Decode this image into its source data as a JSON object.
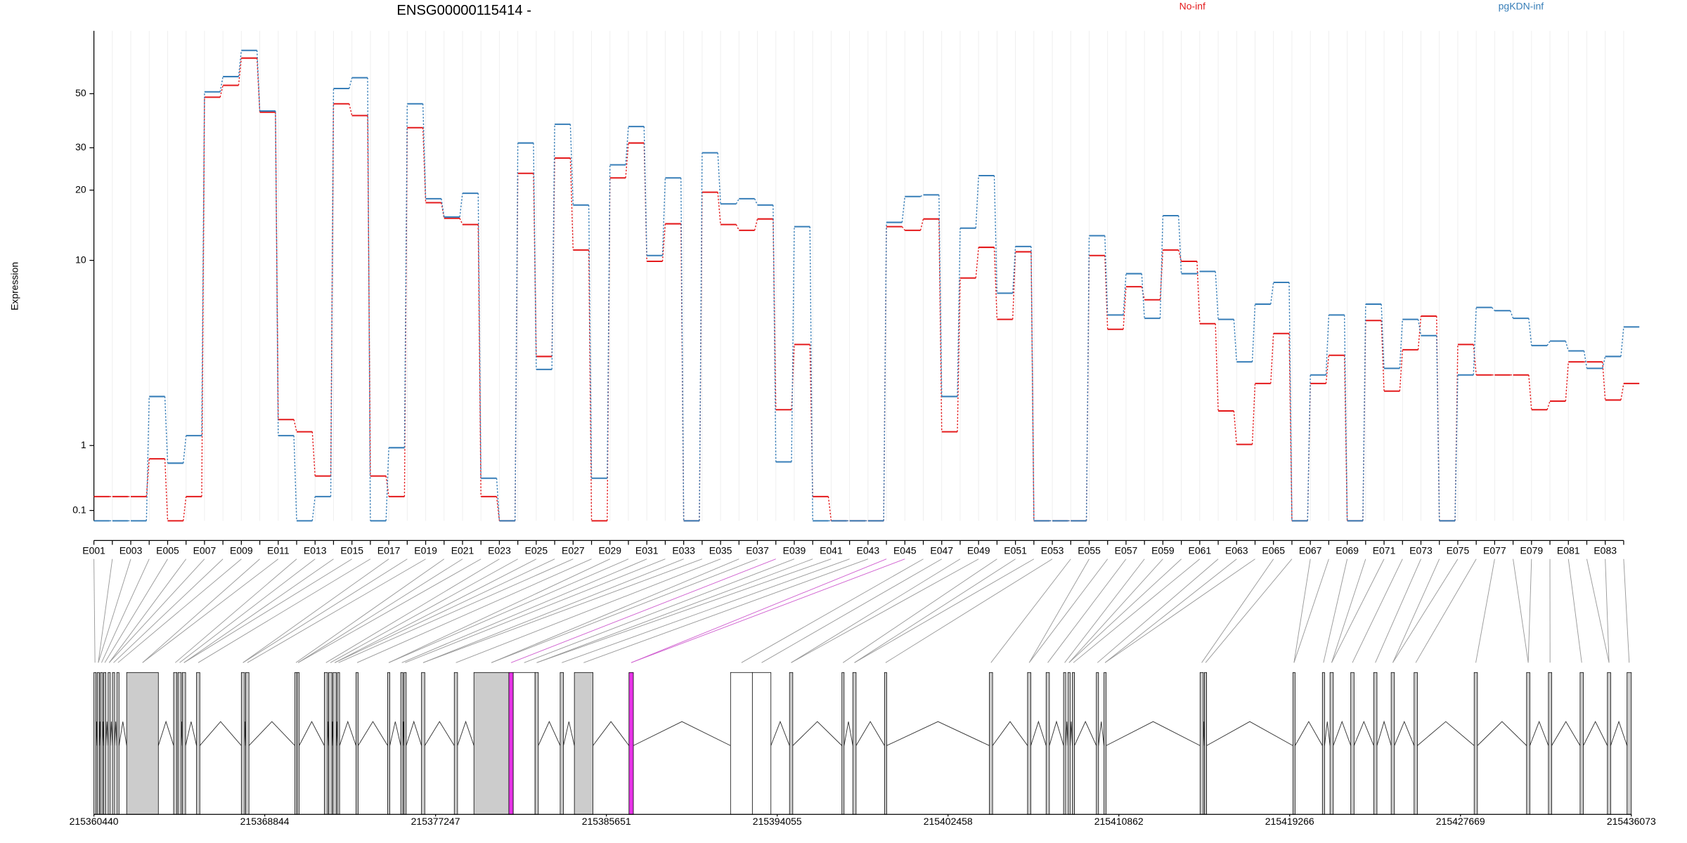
{
  "chart_data": [
    {
      "type": "step_line",
      "title": "ENSG00000115414 -",
      "y_label": "Expression",
      "yscale": "log1p",
      "grid": true,
      "ylim": [
        0,
        90
      ],
      "yticks": [
        0.1,
        1,
        10,
        20,
        30,
        50
      ],
      "categories": [
        "E001",
        null,
        "E003",
        null,
        "E005",
        null,
        "E007",
        null,
        "E009",
        null,
        "E011",
        null,
        "E013",
        null,
        "E015",
        null,
        "E017",
        null,
        "E019",
        null,
        "E021",
        null,
        "E023",
        null,
        "E025",
        null,
        "E027",
        null,
        "E029",
        null,
        "E031",
        null,
        "E033",
        null,
        "E035",
        null,
        "E037",
        null,
        "E039",
        null,
        "E041",
        null,
        "E043",
        null,
        "E045",
        null,
        "E047",
        null,
        "E049",
        null,
        "E051",
        null,
        "E053",
        null,
        "E055",
        null,
        "E057",
        null,
        "E059",
        null,
        "E061",
        null,
        "E063",
        null,
        "E065",
        null,
        "E067",
        null,
        "E069",
        null,
        "E071",
        null,
        "E073",
        null,
        "E075",
        null,
        "E077",
        null,
        "E079",
        null,
        "E081",
        null,
        "E083",
        null
      ],
      "series": [
        {
          "name": "No-inf",
          "color": "#e41a1c",
          "values": [
            0.25,
            0.25,
            0.25,
            0.77,
            0,
            0.25,
            48.4,
            54.1,
            69.8,
            42.0,
            1.54,
            1.27,
            0.51,
            45.5,
            40.7,
            0.51,
            0.25,
            36.3,
            17.7,
            15.2,
            14.3,
            0.25,
            0,
            23.5,
            3.54,
            27.2,
            11.1,
            0,
            22.5,
            31.4,
            9.9,
            14.4,
            0,
            19.6,
            14.3,
            13.5,
            15.1,
            1.78,
            4.07,
            0.25,
            0,
            0,
            0,
            14.0,
            13.5,
            15.1,
            1.27,
            8.35,
            11.4,
            5.39,
            10.9,
            0,
            0,
            0,
            10.5,
            4.83,
            7.63,
            6.65,
            11.1,
            9.9,
            5.14,
            1.75,
            1.02,
            2.54,
            4.61,
            0,
            2.54,
            3.59,
            0,
            5.32,
            2.3,
            3.83,
            5.58,
            0,
            4.07,
            2.83,
            2.83,
            2.83,
            1.78,
            2.01,
            3.32,
            3.32,
            2.04,
            2.54
          ]
        },
        {
          "name": "pgKDN-inf",
          "color": "#377eb8",
          "values": [
            0,
            0,
            0,
            2.14,
            0.7,
            1.19,
            50.9,
            58.7,
            75.0,
            42.5,
            1.19,
            0,
            0.25,
            52.5,
            58.1,
            0,
            0.96,
            45.5,
            18.4,
            15.4,
            19.4,
            0.48,
            0,
            31.4,
            3.03,
            37.5,
            17.3,
            0.48,
            25.5,
            36.7,
            10.5,
            22.5,
            0,
            28.6,
            17.5,
            18.4,
            17.3,
            0.72,
            14.0,
            0,
            0,
            0,
            0,
            14.6,
            18.8,
            19.1,
            2.14,
            13.8,
            23.0,
            7.13,
            11.5,
            0,
            0,
            0,
            12.8,
            5.65,
            8.73,
            5.45,
            15.6,
            8.73,
            8.93,
            5.39,
            3.32,
            6.35,
            7.98,
            0,
            2.83,
            5.65,
            0,
            6.35,
            3.07,
            5.39,
            4.5,
            0,
            2.83,
            6.13,
            5.92,
            5.45,
            4.02,
            4.23,
            3.78,
            3.07,
            3.54,
            4.96
          ]
        }
      ]
    },
    {
      "type": "gene_model",
      "xlim": [
        215360440,
        215436073
      ],
      "xticks": [
        215360440,
        215368844,
        215377247,
        215385651,
        215394055,
        215402458,
        215410862,
        215419266,
        215427669,
        215436073
      ],
      "exons": [
        {
          "start": 215360440,
          "end": 215360547,
          "color": "#cccccc"
        },
        {
          "start": 215360601,
          "end": 215360708,
          "color": "#cccccc"
        },
        {
          "start": 215360762,
          "end": 215360869,
          "color": "#cccccc"
        },
        {
          "start": 215360923,
          "end": 215361030,
          "color": "#cccccc"
        },
        {
          "start": 215361138,
          "end": 215361245,
          "color": "#cccccc"
        },
        {
          "start": 215361353,
          "end": 215361460,
          "color": "#cccccc"
        },
        {
          "start": 215361568,
          "end": 215361675,
          "color": "#cccccc"
        },
        {
          "start": 215362052,
          "end": 215363610,
          "color": "#cccccc"
        },
        {
          "start": 215364362,
          "end": 215364523,
          "color": "#cccccc"
        },
        {
          "start": 215364576,
          "end": 215364737,
          "color": "#cccccc"
        },
        {
          "start": 215364791,
          "end": 215364952,
          "color": "#cccccc"
        },
        {
          "start": 215365490,
          "end": 215365651,
          "color": "#cccccc"
        },
        {
          "start": 215367692,
          "end": 215367853,
          "color": "#cccccc"
        },
        {
          "start": 215367907,
          "end": 215368068,
          "color": "#cccccc"
        },
        {
          "start": 215370324,
          "end": 215370431,
          "color": "#cccccc"
        },
        {
          "start": 215370432,
          "end": 215370539,
          "color": "#cccccc"
        },
        {
          "start": 215371775,
          "end": 215371936,
          "color": "#cccccc"
        },
        {
          "start": 215371990,
          "end": 215372151,
          "color": "#cccccc"
        },
        {
          "start": 215372205,
          "end": 215372366,
          "color": "#cccccc"
        },
        {
          "start": 215372420,
          "end": 215372527,
          "color": "#cccccc"
        },
        {
          "start": 215373333,
          "end": 215373440,
          "color": "#cccccc"
        },
        {
          "start": 215374891,
          "end": 215374998,
          "color": "#cccccc"
        },
        {
          "start": 215375535,
          "end": 215375642,
          "color": "#cccccc"
        },
        {
          "start": 215375696,
          "end": 215375803,
          "color": "#cccccc"
        },
        {
          "start": 215376556,
          "end": 215376717,
          "color": "#cccccc"
        },
        {
          "start": 215378168,
          "end": 215378329,
          "color": "#cccccc"
        },
        {
          "start": 215379135,
          "end": 215380854,
          "color": "#cccccc"
        },
        {
          "start": 215380854,
          "end": 215381069,
          "color": "#e633e6"
        },
        {
          "start": 215381069,
          "end": 215382142,
          "color": "#ffffff"
        },
        {
          "start": 215382143,
          "end": 215382304,
          "color": "#cccccc"
        },
        {
          "start": 215383378,
          "end": 215383539,
          "color": "#cccccc"
        },
        {
          "start": 215384077,
          "end": 215384990,
          "color": "#cccccc"
        },
        {
          "start": 215386763,
          "end": 215386978,
          "color": "#e633e6"
        },
        {
          "start": 215391759,
          "end": 215392833,
          "color": "#ffffff"
        },
        {
          "start": 215392833,
          "end": 215393746,
          "color": "#ffffff"
        },
        {
          "start": 215394660,
          "end": 215394821,
          "color": "#cccccc"
        },
        {
          "start": 215397238,
          "end": 215397345,
          "color": "#cccccc"
        },
        {
          "start": 215397775,
          "end": 215397936,
          "color": "#cccccc"
        },
        {
          "start": 215399333,
          "end": 215399440,
          "color": "#cccccc"
        },
        {
          "start": 215404490,
          "end": 215404651,
          "color": "#cccccc"
        },
        {
          "start": 215406371,
          "end": 215406532,
          "color": "#cccccc"
        },
        {
          "start": 215407284,
          "end": 215407445,
          "color": "#cccccc"
        },
        {
          "start": 215408143,
          "end": 215408250,
          "color": "#cccccc"
        },
        {
          "start": 215408358,
          "end": 215408465,
          "color": "#cccccc"
        },
        {
          "start": 215408573,
          "end": 215408680,
          "color": "#cccccc"
        },
        {
          "start": 215409755,
          "end": 215409862,
          "color": "#cccccc"
        },
        {
          "start": 215410131,
          "end": 215410238,
          "color": "#cccccc"
        },
        {
          "start": 215414858,
          "end": 215415019,
          "color": "#cccccc"
        },
        {
          "start": 215415073,
          "end": 215415180,
          "color": "#cccccc"
        },
        {
          "start": 215419425,
          "end": 215419532,
          "color": "#cccccc"
        },
        {
          "start": 215420875,
          "end": 215420982,
          "color": "#cccccc"
        },
        {
          "start": 215421251,
          "end": 215421412,
          "color": "#cccccc"
        },
        {
          "start": 215422272,
          "end": 215422433,
          "color": "#cccccc"
        },
        {
          "start": 215423400,
          "end": 215423561,
          "color": "#cccccc"
        },
        {
          "start": 215424259,
          "end": 215424420,
          "color": "#cccccc"
        },
        {
          "start": 215425387,
          "end": 215425548,
          "color": "#cccccc"
        },
        {
          "start": 215428342,
          "end": 215428503,
          "color": "#cccccc"
        },
        {
          "start": 215430921,
          "end": 215431082,
          "color": "#cccccc"
        },
        {
          "start": 215431995,
          "end": 215432156,
          "color": "#cccccc"
        },
        {
          "start": 215433553,
          "end": 215433714,
          "color": "#cccccc"
        },
        {
          "start": 215434896,
          "end": 215435057,
          "color": "#cccccc"
        },
        {
          "start": 215435863,
          "end": 215436073,
          "color": "#cccccc"
        }
      ]
    }
  ]
}
